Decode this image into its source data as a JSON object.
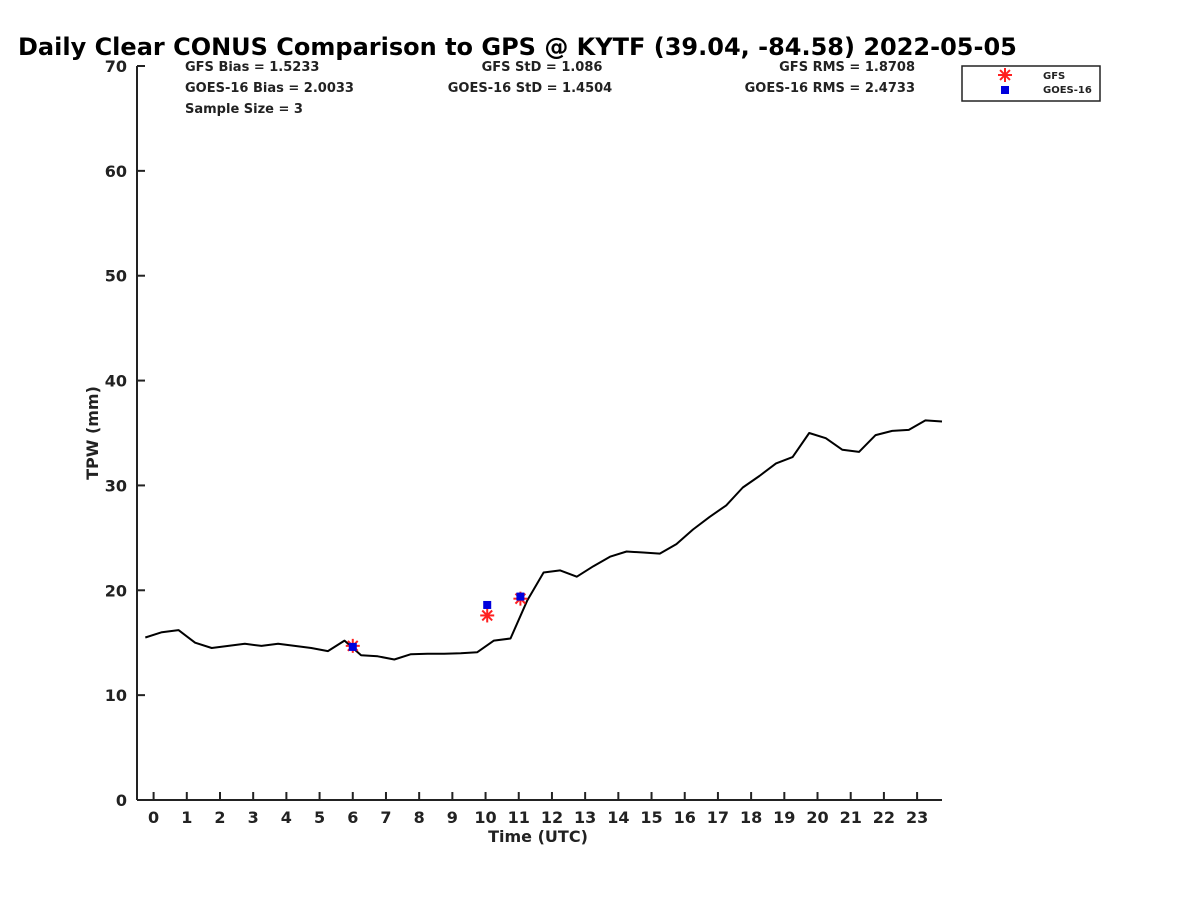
{
  "chart_data": {
    "type": "line",
    "title": "Daily Clear CONUS Comparison to GPS @ KYTF (39.04, -84.58) 2022-05-05",
    "xlabel": "Time (UTC)",
    "ylabel": "TPW (mm)",
    "xlim": [
      -0.5,
      23.75
    ],
    "ylim": [
      0,
      70
    ],
    "x_ticks": [
      0,
      1,
      2,
      3,
      4,
      5,
      6,
      7,
      8,
      9,
      10,
      11,
      12,
      13,
      14,
      15,
      16,
      17,
      18,
      19,
      20,
      21,
      22,
      23
    ],
    "y_ticks": [
      0,
      10,
      20,
      30,
      40,
      50,
      60,
      70
    ],
    "grid": false,
    "legend_position": "top-right",
    "stats": {
      "gfs_bias": "GFS Bias = 1.5233",
      "goes_bias": "GOES-16 Bias = 2.0033",
      "sample_size": "Sample Size = 3",
      "gfs_std": "GFS StD = 1.086",
      "goes_std": "GOES-16 StD = 1.4504",
      "gfs_rms": "GFS RMS = 1.8708",
      "goes_rms": "GOES-16 RMS = 2.4733"
    },
    "series": [
      {
        "type": "line",
        "color": "#000000",
        "x": [
          -0.25,
          0.25,
          0.75,
          1.25,
          1.75,
          2.25,
          2.75,
          3.25,
          3.75,
          4.25,
          4.75,
          5.25,
          5.75,
          6.25,
          6.75,
          7.25,
          7.75,
          8.25,
          8.75,
          9.25,
          9.75,
          10.25,
          10.75,
          11.25,
          11.75,
          12.25,
          12.75,
          13.25,
          13.75,
          14.25,
          14.75,
          15.25,
          15.75,
          16.25,
          16.75,
          17.25,
          17.75,
          18.25,
          18.75,
          19.25,
          19.75,
          20.25,
          20.75,
          21.25,
          21.75,
          22.25,
          22.75,
          23.25,
          23.75
        ],
        "values": [
          15.5,
          16.0,
          16.2,
          15.0,
          14.5,
          14.7,
          14.9,
          14.7,
          14.9,
          14.7,
          14.5,
          14.2,
          15.2,
          13.8,
          13.7,
          13.4,
          13.9,
          13.95,
          13.95,
          14.0,
          14.1,
          15.2,
          15.4,
          19.0,
          21.7,
          21.9,
          21.3,
          22.3,
          23.2,
          23.7,
          23.6,
          23.5,
          24.4,
          25.8,
          27.0,
          28.1,
          29.8,
          30.9,
          32.1,
          32.7,
          35.0,
          34.5,
          33.4,
          33.2,
          34.8,
          35.2,
          35.3,
          36.2,
          36.1
        ]
      },
      {
        "name": "GFS",
        "type": "scatter",
        "marker": "asterisk",
        "color": "#ff2020",
        "x": [
          6.0,
          10.05,
          11.05
        ],
        "values": [
          14.7,
          17.6,
          19.2
        ]
      },
      {
        "name": "GOES-16",
        "type": "scatter",
        "marker": "square",
        "color": "#0000dd",
        "x": [
          6.0,
          10.05,
          11.05
        ],
        "values": [
          14.6,
          18.6,
          19.4
        ]
      }
    ]
  }
}
